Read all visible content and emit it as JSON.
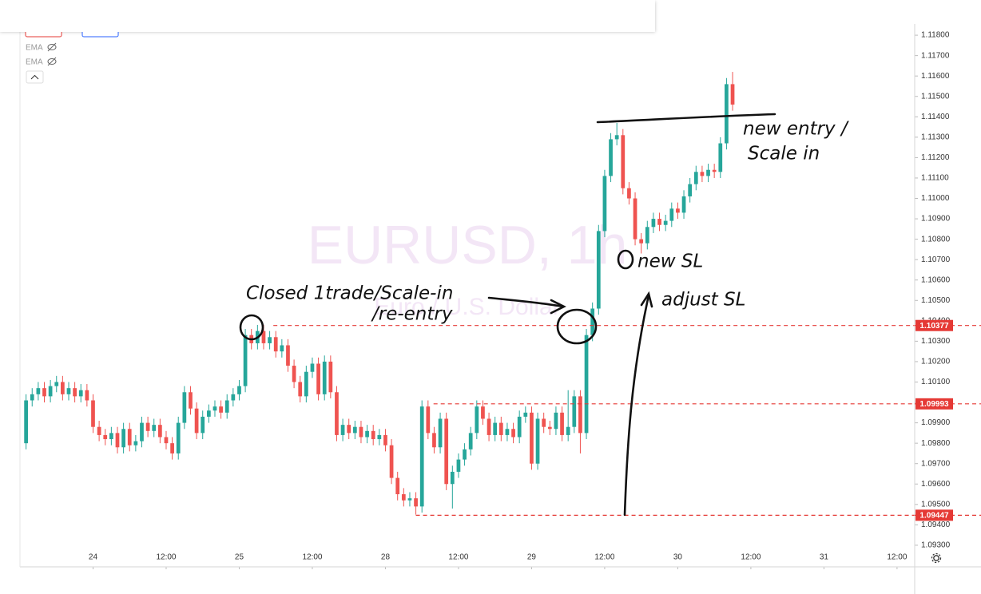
{
  "chart_data": {
    "type": "candlestick",
    "title": "EURUSD, 1h",
    "subtitle": "Euro / U.S. Dollar",
    "x": [
      -11,
      -10,
      -9,
      -8,
      -7,
      -6,
      -5,
      -4,
      -3,
      -2,
      -1,
      0,
      1,
      2,
      3,
      4,
      5,
      6,
      7,
      8,
      9,
      10,
      11,
      12,
      13,
      14,
      15,
      16,
      17,
      18,
      19,
      20,
      21,
      22,
      23,
      24,
      25,
      26,
      27,
      28,
      29,
      30,
      31,
      32,
      33,
      34,
      35,
      36,
      37,
      38,
      39,
      40,
      41,
      42,
      43,
      44,
      45,
      46,
      47,
      48,
      49,
      50,
      51,
      52,
      53,
      54,
      55,
      56,
      57,
      58,
      59,
      60,
      61,
      62,
      63,
      64,
      65,
      66,
      67,
      68,
      69,
      70,
      71,
      72,
      73,
      74,
      75,
      76,
      77,
      78,
      79,
      80,
      81,
      82,
      83,
      84,
      85,
      86,
      87,
      88,
      89,
      90,
      91,
      92,
      93,
      94,
      95,
      96,
      97,
      98,
      99,
      100,
      101,
      102,
      103,
      104,
      105
    ],
    "open": [
      1.098,
      1.1001,
      1.1004,
      1.1007,
      1.1003,
      1.1008,
      1.101,
      1.1004,
      1.1007,
      1.1003,
      1.1006,
      1.1001,
      1.0988,
      1.0984,
      1.0982,
      1.0985,
      1.0978,
      1.0987,
      1.0979,
      1.0981,
      1.099,
      1.0986,
      1.0989,
      1.0983,
      1.098,
      1.0975,
      1.099,
      1.1005,
      1.0997,
      1.0985,
      1.0993,
      1.0996,
      1.0998,
      1.0995,
      1.1001,
      1.1004,
      1.1008,
      1.1033,
      1.1029,
      1.1035,
      1.1029,
      1.1032,
      1.1025,
      1.1028,
      1.1018,
      1.101,
      1.1003,
      1.1015,
      1.1019,
      1.1004,
      1.102,
      1.1005,
      1.0984,
      1.0989,
      1.0985,
      1.0988,
      1.0983,
      1.0986,
      1.0982,
      1.0984,
      1.0979,
      1.0963,
      1.0955,
      1.0952,
      1.0953,
      1.0949,
      1.0998,
      1.0985,
      1.0978,
      1.0992,
      1.096,
      1.0966,
      1.0972,
      1.0977,
      1.0985,
      1.0998,
      1.0992,
      1.0984,
      1.099,
      1.0984,
      1.0987,
      1.0983,
      1.0993,
      1.0995,
      1.097,
      1.0992,
      1.0988,
      1.0987,
      1.0995,
      1.0984,
      1.0988,
      1.1003,
      1.0985,
      1.1033,
      1.1046,
      1.1084,
      1.1111,
      1.1129,
      1.1131,
      1.1105,
      1.11,
      1.108,
      1.1078,
      1.1086,
      1.109,
      1.1087,
      1.1089,
      1.1095,
      1.1093,
      1.1101,
      1.1107,
      1.1113,
      1.1111,
      1.1114,
      1.1113,
      1.1127,
      1.1156
    ],
    "high": [
      1.1004,
      1.1007,
      1.101,
      1.101,
      1.1011,
      1.1013,
      1.1013,
      1.101,
      1.101,
      1.1009,
      1.1009,
      1.1004,
      1.0991,
      1.0987,
      1.0988,
      1.0988,
      1.099,
      1.099,
      1.0984,
      1.0993,
      1.0993,
      1.0992,
      1.0992,
      1.0986,
      1.0983,
      1.0993,
      1.1008,
      1.1008,
      1.1,
      1.0996,
      1.0999,
      1.1001,
      1.1001,
      1.1004,
      1.1007,
      1.1011,
      1.1036,
      1.1036,
      1.1038,
      1.1038,
      1.1035,
      1.1035,
      1.1031,
      1.1031,
      1.1021,
      1.1013,
      1.1018,
      1.1022,
      1.1022,
      1.1023,
      1.1023,
      1.1008,
      1.0992,
      1.0992,
      1.0991,
      1.0991,
      1.0989,
      1.0989,
      1.0987,
      1.0987,
      1.0982,
      1.0966,
      1.0958,
      1.0956,
      1.0956,
      1.1001,
      1.1001,
      1.0988,
      1.0995,
      1.0995,
      1.0969,
      1.0975,
      1.098,
      1.0988,
      1.1001,
      1.1001,
      1.0995,
      1.0993,
      1.0993,
      1.099,
      1.099,
      1.0996,
      1.0998,
      1.0998,
      1.0995,
      1.0995,
      1.0991,
      1.0998,
      1.0998,
      1.1006,
      1.1006,
      1.1006,
      1.1036,
      1.1049,
      1.1087,
      1.1114,
      1.1132,
      1.1137,
      1.1134,
      1.1108,
      1.1103,
      1.1083,
      1.1089,
      1.1093,
      1.1093,
      1.1092,
      1.1098,
      1.1098,
      1.1104,
      1.111,
      1.1116,
      1.1116,
      1.1117,
      1.1117,
      1.113,
      1.1159,
      1.1162
    ],
    "low": [
      1.0977,
      1.0998,
      1.1001,
      1.1,
      1.1,
      1.1005,
      1.1001,
      1.1001,
      1.1,
      1.1,
      1.0998,
      1.0985,
      1.0981,
      1.0979,
      1.0979,
      1.0975,
      1.0975,
      1.0976,
      1.0976,
      1.0978,
      1.0983,
      1.0983,
      1.098,
      1.0977,
      1.0972,
      1.0972,
      1.0987,
      1.0994,
      1.0982,
      1.0982,
      1.099,
      1.0993,
      1.0992,
      1.0992,
      1.0998,
      1.1001,
      1.1005,
      1.1026,
      1.1026,
      1.1026,
      1.1026,
      1.1022,
      1.1022,
      1.1015,
      1.1007,
      1.1,
      1.1,
      1.1012,
      1.1001,
      1.1001,
      1.1002,
      1.0981,
      1.0981,
      1.0982,
      1.0982,
      1.098,
      1.098,
      1.0979,
      1.0979,
      1.0976,
      1.096,
      1.0952,
      1.0949,
      1.0949,
      1.0945,
      1.0946,
      1.0982,
      1.0975,
      1.0975,
      1.0957,
      1.0948,
      1.0963,
      1.0969,
      1.0974,
      1.0982,
      1.0989,
      1.0981,
      1.0981,
      1.0981,
      1.0981,
      1.098,
      1.098,
      1.099,
      1.0967,
      1.0967,
      1.0985,
      1.0984,
      1.0984,
      1.0981,
      1.0981,
      1.0985,
      1.0975,
      1.0982,
      1.103,
      1.1043,
      1.1081,
      1.1108,
      1.1126,
      1.1102,
      1.1097,
      1.1077,
      1.1073,
      1.1075,
      1.1083,
      1.1084,
      1.1084,
      1.1086,
      1.109,
      1.109,
      1.1098,
      1.1104,
      1.1108,
      1.1108,
      1.111,
      1.111,
      1.1124,
      1.1143
    ],
    "close": [
      1.1001,
      1.1004,
      1.1007,
      1.1003,
      1.1008,
      1.101,
      1.1004,
      1.1007,
      1.1003,
      1.1006,
      1.1001,
      1.0988,
      1.0984,
      1.0982,
      1.0985,
      1.0978,
      1.0987,
      1.0979,
      1.0981,
      1.099,
      1.0986,
      1.0989,
      1.0983,
      1.098,
      1.0975,
      1.099,
      1.1005,
      1.0997,
      1.0985,
      1.0993,
      1.0996,
      1.0998,
      1.0995,
      1.1001,
      1.1004,
      1.1008,
      1.1033,
      1.1029,
      1.1035,
      1.1029,
      1.1032,
      1.1025,
      1.1028,
      1.1018,
      1.101,
      1.1003,
      1.1015,
      1.1019,
      1.1004,
      1.102,
      1.1005,
      1.0984,
      1.0989,
      1.0985,
      1.0988,
      1.0983,
      1.0986,
      1.0982,
      1.0984,
      1.0979,
      1.0963,
      1.0955,
      1.0952,
      1.0953,
      1.0949,
      1.0998,
      1.0985,
      1.0978,
      1.0992,
      1.096,
      1.0966,
      1.0972,
      1.0977,
      1.0985,
      1.0998,
      1.0992,
      1.0984,
      1.099,
      1.0984,
      1.0987,
      1.0983,
      1.0993,
      1.0995,
      1.097,
      1.0992,
      1.0988,
      1.0987,
      1.0995,
      1.0984,
      1.0988,
      1.1003,
      1.0985,
      1.1033,
      1.1046,
      1.1084,
      1.1111,
      1.1129,
      1.1131,
      1.1105,
      1.11,
      1.108,
      1.1078,
      1.1086,
      1.109,
      1.1087,
      1.1089,
      1.1095,
      1.1093,
      1.1101,
      1.1107,
      1.1113,
      1.1111,
      1.1114,
      1.1113,
      1.1127,
      1.1156,
      1.1146
    ],
    "up_color": "#26a69a",
    "down_color": "#ef5350",
    "xlim": [
      -12,
      134.9
    ],
    "xticks": [
      {
        "value": 0,
        "label": "24"
      },
      {
        "value": 12,
        "label": "12:00"
      },
      {
        "value": 24,
        "label": "25"
      },
      {
        "value": 36,
        "label": "12:00"
      },
      {
        "value": 48,
        "label": "28"
      },
      {
        "value": 60,
        "label": "12:00"
      },
      {
        "value": 72,
        "label": "29"
      },
      {
        "value": 84,
        "label": "12:00"
      },
      {
        "value": 96,
        "label": "30"
      },
      {
        "value": 108,
        "label": "12:00"
      },
      {
        "value": 120,
        "label": "31"
      },
      {
        "value": 132,
        "label": "12:00"
      }
    ],
    "ylim": [
      1.09194,
      1.11816
    ],
    "yticks": [
      {
        "value": 1.093,
        "label": "1.09300"
      },
      {
        "value": 1.094,
        "label": "1.09400"
      },
      {
        "value": 1.095,
        "label": "1.09500"
      },
      {
        "value": 1.096,
        "label": "1.09600"
      },
      {
        "value": 1.097,
        "label": "1.09700"
      },
      {
        "value": 1.098,
        "label": "1.09800"
      },
      {
        "value": 1.099,
        "label": "1.09900"
      },
      {
        "value": 1.1,
        "label": "1.10000"
      },
      {
        "value": 1.101,
        "label": "1.10100"
      },
      {
        "value": 1.102,
        "label": "1.10200"
      },
      {
        "value": 1.103,
        "label": "1.10300"
      },
      {
        "value": 1.104,
        "label": "1.10400"
      },
      {
        "value": 1.105,
        "label": "1.10500"
      },
      {
        "value": 1.106,
        "label": "1.10600"
      },
      {
        "value": 1.107,
        "label": "1.10700"
      },
      {
        "value": 1.108,
        "label": "1.10800"
      },
      {
        "value": 1.109,
        "label": "1.10900"
      },
      {
        "value": 1.11,
        "label": "1.11000"
      },
      {
        "value": 1.111,
        "label": "1.11100"
      },
      {
        "value": 1.112,
        "label": "1.11200"
      },
      {
        "value": 1.113,
        "label": "1.11300"
      },
      {
        "value": 1.114,
        "label": "1.11400"
      },
      {
        "value": 1.115,
        "label": "1.11500"
      },
      {
        "value": 1.116,
        "label": "1.11600"
      },
      {
        "value": 1.117,
        "label": "1.11700"
      },
      {
        "value": 1.118,
        "label": "1.11800"
      }
    ],
    "levels": [
      {
        "value": 1.10377,
        "from": 29.6
      },
      {
        "value": 1.09993,
        "from": 55.9
      },
      {
        "value": 1.09447,
        "from": 53
      }
    ],
    "level_color": "#e53935"
  },
  "indicators": [
    "EMA",
    "EMA"
  ],
  "annotations": [
    "new entry /",
    "Scale in",
    "Closed 1trade/Scale-in",
    "/re-entry",
    "new SL",
    "adjust SL"
  ]
}
